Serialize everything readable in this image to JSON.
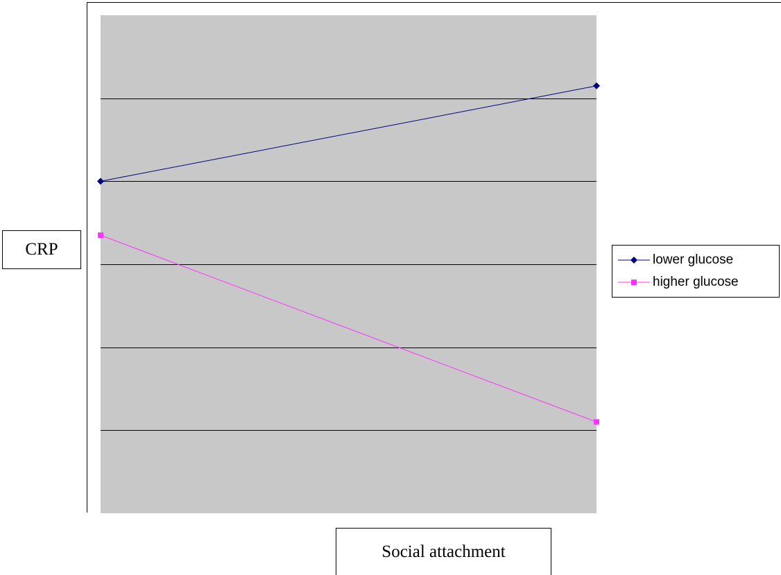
{
  "chart_data": {
    "type": "line",
    "xlabel": "Social attachment",
    "ylabel": "CRP",
    "x": [
      0,
      1
    ],
    "ylim": [
      0,
      6
    ],
    "grid": true,
    "legend_position": "right",
    "series": [
      {
        "name": "lower glucose",
        "values": [
          4.0,
          5.15
        ],
        "color": "#000080",
        "marker": "diamond"
      },
      {
        "name": "higher glucose",
        "values": [
          3.35,
          1.1
        ],
        "color": "#FF33FF",
        "marker": "square"
      }
    ],
    "plot_background": "#C8C8C8",
    "gridline_color": "#000000"
  }
}
